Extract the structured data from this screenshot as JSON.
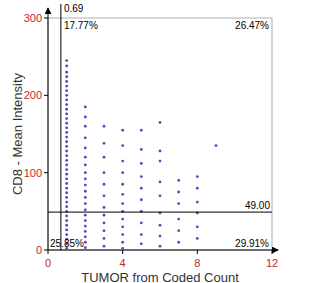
{
  "chart_data": {
    "type": "scatter",
    "x_label": "TUMOR from Coded Count",
    "y_label": "CD8 - Mean Intensity",
    "xlim": [
      0,
      12
    ],
    "xticks": [
      0,
      4,
      8,
      12
    ],
    "ylim": [
      0,
      300
    ],
    "yticks": [
      0,
      100,
      200,
      300
    ],
    "color": "#6a3db8",
    "marker": "circle",
    "x_gate": {
      "value": 0.69,
      "label": "0.69"
    },
    "y_gate": {
      "value": 49,
      "label": "49.00"
    },
    "quadrants": {
      "upper_left": {
        "value": 17.77,
        "label": "17.77%"
      },
      "upper_right": {
        "value": 26.47,
        "label": "26.47%"
      },
      "lower_left": {
        "value": 25.85,
        "label": "25.85%"
      },
      "lower_right": {
        "value": 29.91,
        "label": "29.91%"
      }
    },
    "x": [
      1,
      1,
      1,
      1,
      1,
      1,
      1,
      1,
      1,
      1,
      1,
      1,
      1,
      1,
      1,
      1,
      1,
      1,
      1,
      1,
      1,
      1,
      1,
      1,
      1,
      1,
      1,
      1,
      1,
      1,
      1,
      1,
      1,
      1,
      1,
      1,
      1,
      1,
      1,
      1,
      1,
      2,
      2,
      2,
      2,
      2,
      2,
      2,
      2,
      2,
      2,
      2,
      2,
      2,
      2,
      2,
      2,
      2,
      2,
      2,
      2,
      2,
      3,
      3,
      3,
      3,
      3,
      3,
      3,
      3,
      3,
      3,
      3,
      3,
      4,
      4,
      4,
      4,
      4,
      4,
      4,
      4,
      4,
      4,
      4,
      4,
      4,
      5,
      5,
      5,
      5,
      5,
      5,
      5,
      5,
      5,
      5,
      6,
      6,
      6,
      6,
      6,
      6,
      6,
      6,
      6,
      7,
      7,
      7,
      7,
      7,
      7,
      8,
      8,
      8,
      8,
      8,
      8,
      9
    ],
    "values": [
      2,
      8,
      14,
      20,
      26,
      32,
      38,
      44,
      50,
      56,
      62,
      68,
      74,
      80,
      86,
      92,
      98,
      104,
      110,
      116,
      122,
      128,
      134,
      140,
      146,
      152,
      158,
      164,
      170,
      176,
      182,
      188,
      194,
      200,
      206,
      212,
      218,
      224,
      230,
      238,
      245,
      3,
      10,
      17,
      24,
      31,
      38,
      45,
      52,
      60,
      68,
      76,
      84,
      92,
      100,
      110,
      120,
      132,
      145,
      160,
      172,
      185,
      5,
      15,
      25,
      35,
      45,
      55,
      70,
      85,
      100,
      120,
      138,
      160,
      2,
      10,
      20,
      30,
      40,
      50,
      60,
      72,
      85,
      100,
      115,
      135,
      155,
      8,
      20,
      35,
      50,
      65,
      80,
      95,
      112,
      130,
      155,
      5,
      18,
      32,
      48,
      70,
      88,
      115,
      128,
      165,
      10,
      25,
      40,
      60,
      75,
      90,
      15,
      30,
      48,
      62,
      80,
      95,
      135
    ]
  }
}
